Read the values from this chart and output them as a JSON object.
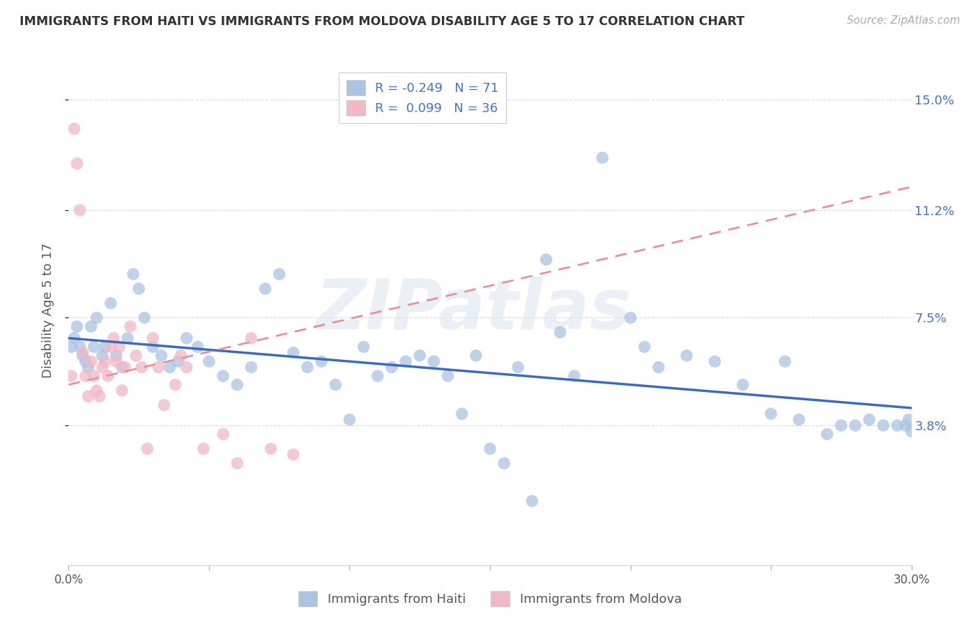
{
  "title": "IMMIGRANTS FROM HAITI VS IMMIGRANTS FROM MOLDOVA DISABILITY AGE 5 TO 17 CORRELATION CHART",
  "source": "Source: ZipAtlas.com",
  "ylabel": "Disability Age 5 to 17",
  "xlim": [
    0.0,
    0.3
  ],
  "ylim": [
    -0.01,
    0.165
  ],
  "yticks": [
    0.038,
    0.075,
    0.112,
    0.15
  ],
  "ytick_labels": [
    "3.8%",
    "7.5%",
    "11.2%",
    "15.0%"
  ],
  "haiti_color": "#aac4e2",
  "moldova_color": "#f2b8c6",
  "haiti_line_color": "#3a6bbf",
  "moldova_line_color": "#e8909a",
  "haiti_R": -0.249,
  "haiti_N": 71,
  "moldova_R": 0.099,
  "moldova_N": 36,
  "legend_label_haiti": "Immigrants from Haiti",
  "legend_label_moldova": "Immigrants from Moldova",
  "background_color": "#ffffff",
  "grid_color": "#d8d8d8",
  "watermark": "ZIPatlas",
  "haiti_trend_x": [
    0.0,
    0.3
  ],
  "haiti_trend_y": [
    0.068,
    0.044
  ],
  "moldova_trend_x": [
    0.0,
    0.3
  ],
  "moldova_trend_y": [
    0.052,
    0.12
  ],
  "haiti_x": [
    0.001,
    0.002,
    0.003,
    0.004,
    0.005,
    0.006,
    0.007,
    0.008,
    0.009,
    0.01,
    0.012,
    0.013,
    0.015,
    0.017,
    0.019,
    0.021,
    0.023,
    0.025,
    0.027,
    0.03,
    0.033,
    0.036,
    0.039,
    0.042,
    0.046,
    0.05,
    0.055,
    0.06,
    0.065,
    0.07,
    0.075,
    0.08,
    0.085,
    0.09,
    0.095,
    0.1,
    0.105,
    0.11,
    0.115,
    0.12,
    0.125,
    0.13,
    0.135,
    0.14,
    0.145,
    0.15,
    0.155,
    0.16,
    0.165,
    0.17,
    0.175,
    0.18,
    0.19,
    0.2,
    0.205,
    0.21,
    0.22,
    0.23,
    0.24,
    0.25,
    0.255,
    0.26,
    0.27,
    0.275,
    0.28,
    0.285,
    0.29,
    0.295,
    0.298,
    0.299,
    0.3
  ],
  "haiti_y": [
    0.065,
    0.068,
    0.072,
    0.065,
    0.062,
    0.06,
    0.058,
    0.072,
    0.065,
    0.075,
    0.062,
    0.065,
    0.08,
    0.062,
    0.058,
    0.068,
    0.09,
    0.085,
    0.075,
    0.065,
    0.062,
    0.058,
    0.06,
    0.068,
    0.065,
    0.06,
    0.055,
    0.052,
    0.058,
    0.085,
    0.09,
    0.063,
    0.058,
    0.06,
    0.052,
    0.04,
    0.065,
    0.055,
    0.058,
    0.06,
    0.062,
    0.06,
    0.055,
    0.042,
    0.062,
    0.03,
    0.025,
    0.058,
    0.012,
    0.095,
    0.07,
    0.055,
    0.13,
    0.075,
    0.065,
    0.058,
    0.062,
    0.06,
    0.052,
    0.042,
    0.06,
    0.04,
    0.035,
    0.038,
    0.038,
    0.04,
    0.038,
    0.038,
    0.038,
    0.04,
    0.036
  ],
  "moldova_x": [
    0.001,
    0.002,
    0.003,
    0.004,
    0.005,
    0.006,
    0.007,
    0.008,
    0.009,
    0.01,
    0.011,
    0.012,
    0.013,
    0.014,
    0.015,
    0.016,
    0.017,
    0.018,
    0.019,
    0.02,
    0.022,
    0.024,
    0.026,
    0.028,
    0.03,
    0.032,
    0.034,
    0.038,
    0.04,
    0.042,
    0.048,
    0.055,
    0.06,
    0.065,
    0.072,
    0.08
  ],
  "moldova_y": [
    0.055,
    0.14,
    0.128,
    0.112,
    0.063,
    0.055,
    0.048,
    0.06,
    0.055,
    0.05,
    0.048,
    0.058,
    0.06,
    0.055,
    0.065,
    0.068,
    0.06,
    0.065,
    0.05,
    0.058,
    0.072,
    0.062,
    0.058,
    0.03,
    0.068,
    0.058,
    0.045,
    0.052,
    0.062,
    0.058,
    0.03,
    0.035,
    0.025,
    0.068,
    0.03,
    0.028
  ]
}
